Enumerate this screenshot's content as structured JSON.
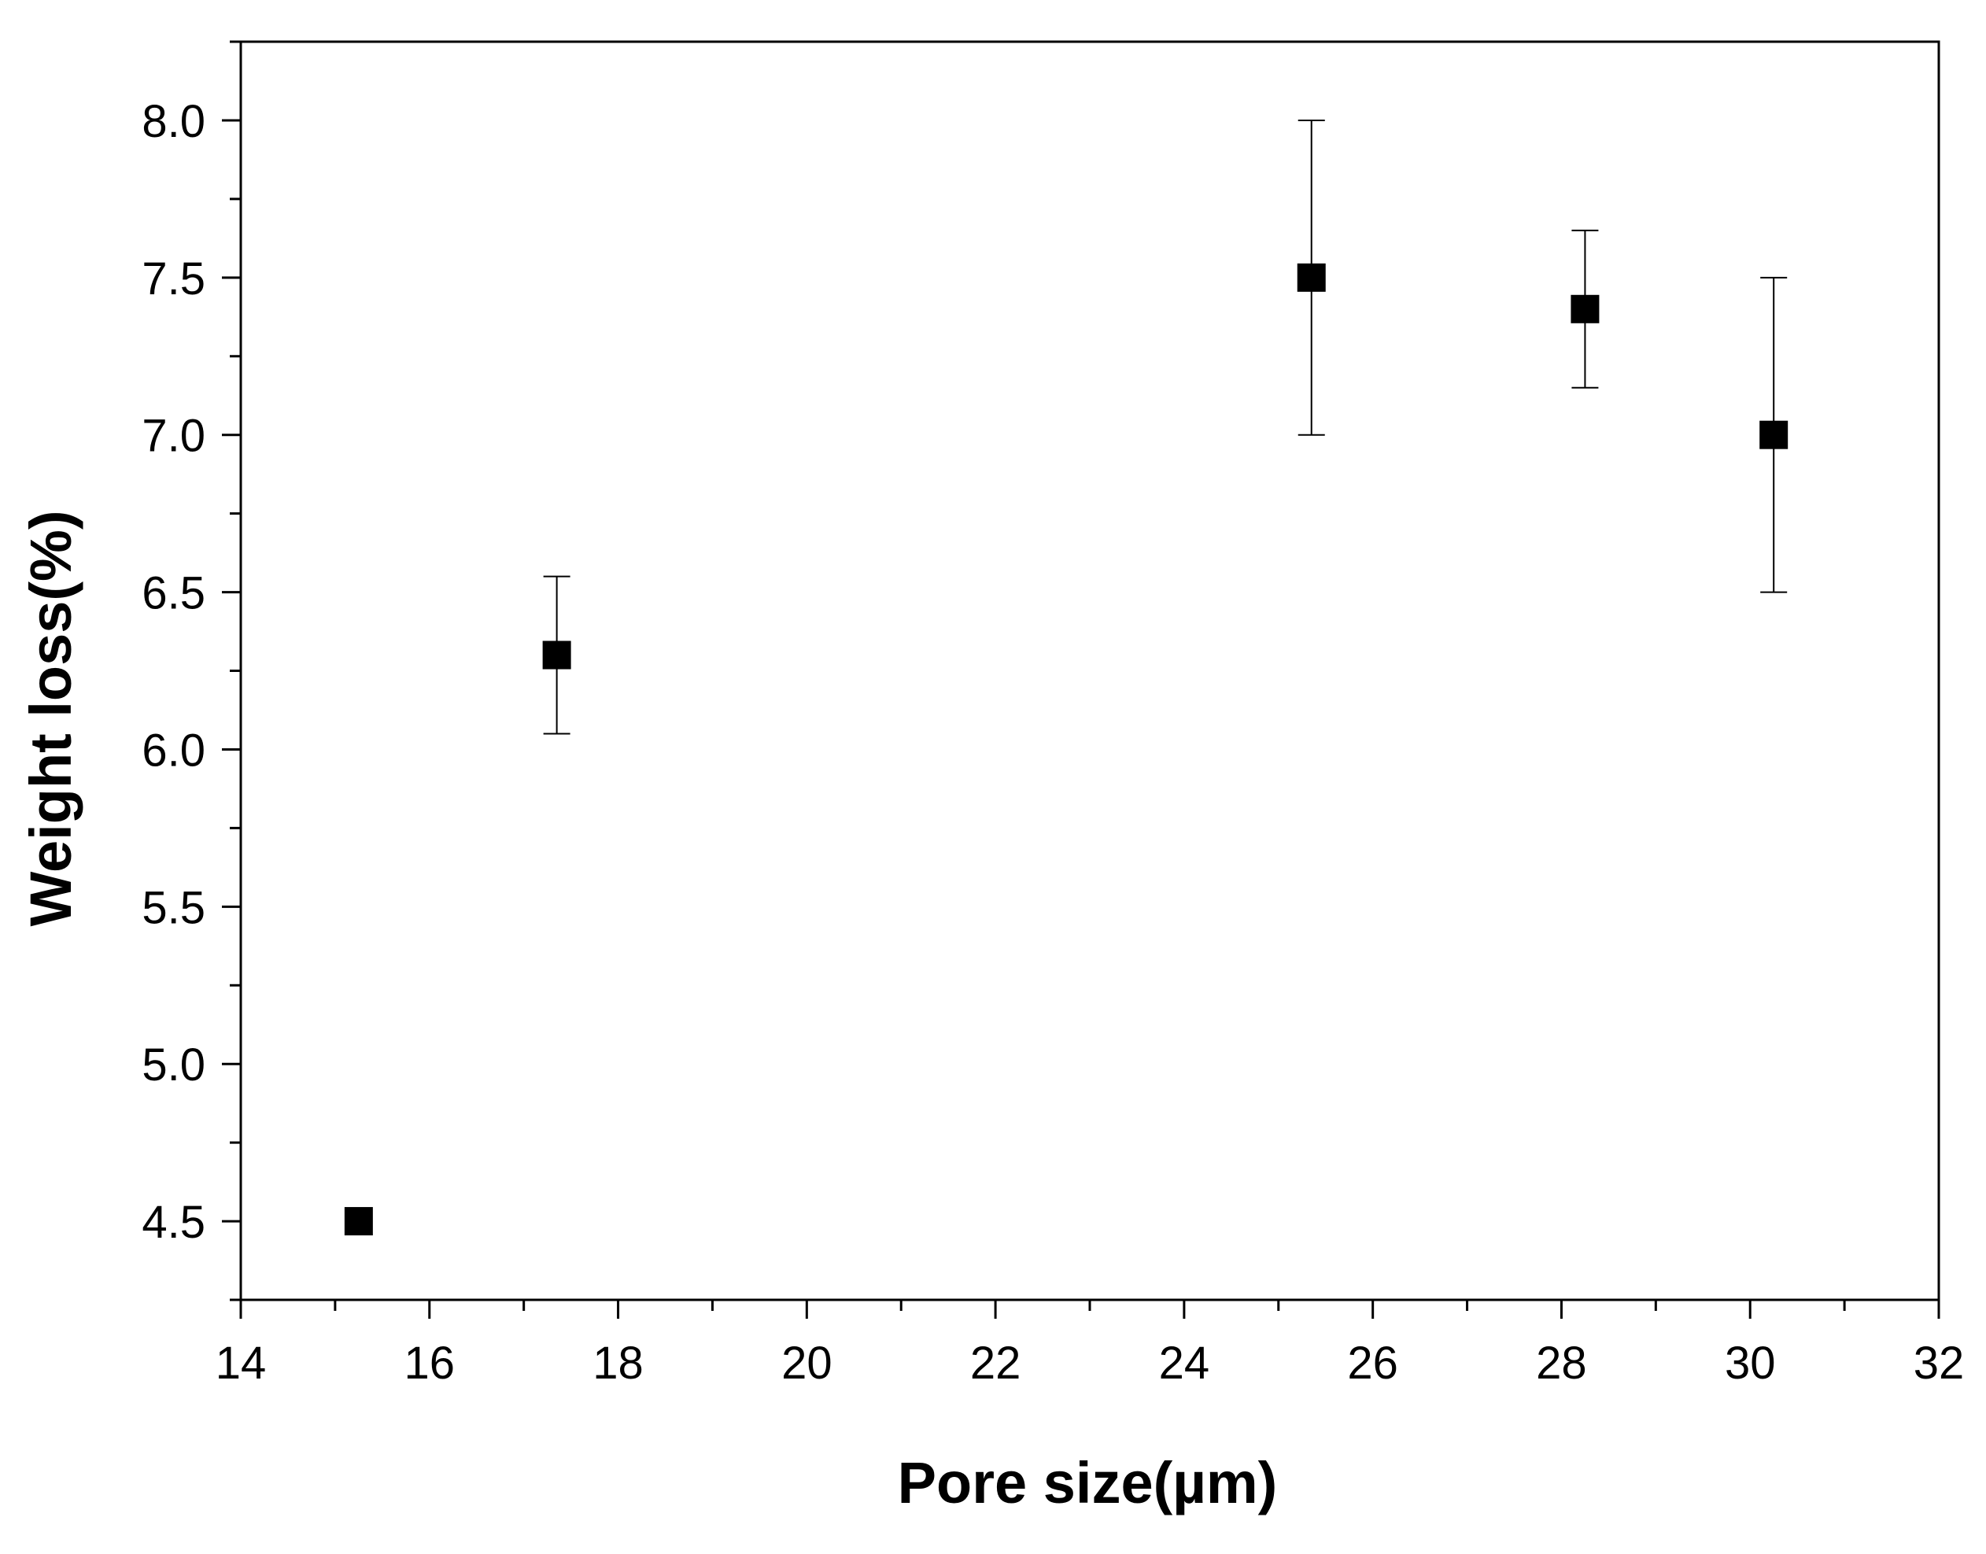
{
  "chart_data": {
    "type": "scatter",
    "title": "",
    "xlabel": "Pore size(µm)",
    "ylabel": "Weight loss(%)",
    "xlim": [
      14,
      32
    ],
    "ylim": [
      4.25,
      8.25
    ],
    "x_ticks": [
      14,
      16,
      18,
      20,
      22,
      24,
      26,
      28,
      30,
      32
    ],
    "x_tick_labels": [
      "14",
      "16",
      "18",
      "20",
      "22",
      "24",
      "26",
      "28",
      "30",
      "32"
    ],
    "y_ticks": [
      4.5,
      5.0,
      5.5,
      6.0,
      6.5,
      7.0,
      7.5,
      8.0
    ],
    "y_tick_labels": [
      "4.5",
      "5.0",
      "5.5",
      "6.0",
      "6.5",
      "7.0",
      "7.5",
      "8.0"
    ],
    "grid": false,
    "legend": "none",
    "marker": "square",
    "marker_color": "#000000",
    "series": [
      {
        "x": [
          15.25,
          17.35,
          25.35,
          28.25,
          30.25
        ],
        "y": [
          4.5,
          6.3,
          7.5,
          7.4,
          7.0
        ],
        "error_low": [
          null,
          6.05,
          7.0,
          7.15,
          6.5
        ],
        "error_high": [
          null,
          6.55,
          8.0,
          7.65,
          7.5
        ]
      }
    ]
  }
}
